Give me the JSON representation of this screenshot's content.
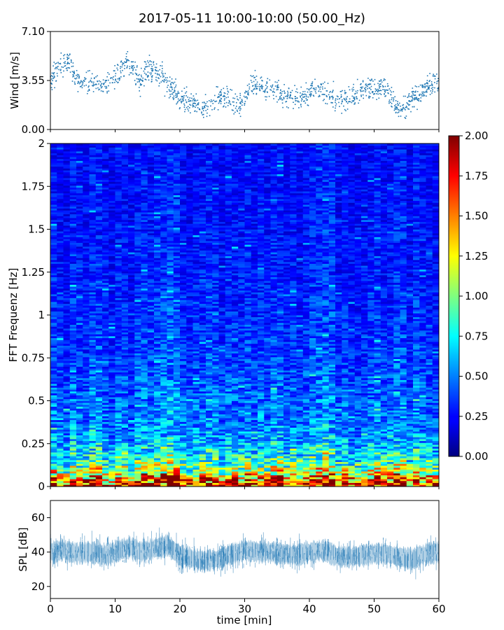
{
  "figure_title": "2017-05-11 10:00-10:00 (50.00_Hz)",
  "chart_data": [
    {
      "type": "scatter",
      "panel": "wind",
      "ylabel": "Wind [m/s]",
      "xlim": [
        0,
        60
      ],
      "ylim": [
        0,
        7.1
      ],
      "yticks": [
        "0.00",
        "3.55",
        "7.10"
      ],
      "marker_color": "#1f77b4",
      "x_label_shared": "time [min]",
      "series": [
        {
          "x": [
            0,
            1,
            2,
            3,
            4,
            5,
            6,
            7,
            8,
            9,
            10,
            11,
            12,
            13,
            14,
            15,
            16,
            17,
            18,
            19,
            20,
            21,
            22,
            23,
            24,
            25,
            26,
            27,
            28,
            29,
            30,
            31,
            32,
            33,
            34,
            35,
            36,
            37,
            38,
            39,
            40,
            41,
            42,
            43,
            44,
            45,
            46,
            47,
            48,
            49,
            50,
            51,
            52,
            53,
            54,
            55,
            56,
            57,
            58,
            59,
            60
          ],
          "values": [
            3.6,
            4.2,
            4.7,
            4.9,
            3.7,
            3.3,
            3.4,
            3.6,
            3.0,
            3.3,
            3.6,
            4.4,
            4.8,
            4.1,
            3.4,
            4.5,
            4.4,
            3.9,
            3.2,
            3.0,
            2.2,
            2.0,
            2.0,
            1.8,
            1.5,
            1.7,
            2.3,
            2.4,
            1.9,
            1.8,
            2.1,
            3.4,
            3.2,
            3.0,
            2.9,
            2.8,
            2.4,
            2.5,
            2.3,
            2.2,
            2.6,
            3.1,
            2.8,
            2.5,
            2.3,
            2.2,
            2.4,
            2.5,
            2.9,
            3.0,
            3.0,
            3.2,
            2.9,
            2.1,
            1.4,
            1.8,
            2.3,
            2.6,
            3.0,
            3.2,
            3.4
          ],
          "spread": 0.9
        }
      ]
    },
    {
      "type": "heatmap",
      "panel": "spectrogram",
      "ylabel": "FFT Frequenz [Hz]",
      "xlim": [
        0,
        60
      ],
      "ylim": [
        0,
        2
      ],
      "yticks": [
        "0",
        "0.25",
        "0.5",
        "0.75",
        "1",
        "1.25",
        "1.5",
        "1.75",
        "2"
      ],
      "colormap": "jet",
      "colorbar": {
        "vmin": 0,
        "vmax": 2,
        "ticks": [
          "0.00",
          "0.25",
          "0.50",
          "0.75",
          "1.00",
          "1.25",
          "1.50",
          "1.75",
          "2.00"
        ]
      },
      "frequency_profile": {
        "freq": [
          0,
          0.05,
          0.1,
          0.15,
          0.2,
          0.3,
          0.4,
          0.6,
          0.8,
          1.0,
          1.25,
          1.5,
          1.75,
          2.0
        ],
        "mean_level": [
          1.8,
          1.45,
          1.05,
          0.85,
          0.7,
          0.55,
          0.48,
          0.42,
          0.36,
          0.33,
          0.3,
          0.28,
          0.27,
          0.26
        ]
      }
    },
    {
      "type": "line",
      "panel": "spl",
      "ylabel": "SPL [dB]",
      "xlabel": "time [min]",
      "xlim": [
        0,
        60
      ],
      "ylim": [
        13,
        70
      ],
      "xticks": [
        "0",
        "10",
        "20",
        "30",
        "40",
        "50",
        "60"
      ],
      "yticks": [
        "20",
        "40",
        "60"
      ],
      "line_color": "#1f77b4",
      "series": [
        {
          "x": [
            0,
            2,
            4,
            6,
            8,
            10,
            12,
            14,
            16,
            18,
            20,
            22,
            24,
            26,
            28,
            30,
            32,
            34,
            36,
            38,
            40,
            42,
            44,
            46,
            48,
            50,
            52,
            54,
            56,
            58,
            60
          ],
          "values": [
            40,
            41,
            39,
            40,
            38,
            40,
            43,
            40,
            42,
            44,
            38,
            36,
            35,
            36,
            39,
            41,
            40,
            40,
            39,
            38,
            40,
            41,
            38,
            37,
            38,
            39,
            39,
            37,
            36,
            39,
            40
          ],
          "spread": 5
        }
      ]
    }
  ]
}
